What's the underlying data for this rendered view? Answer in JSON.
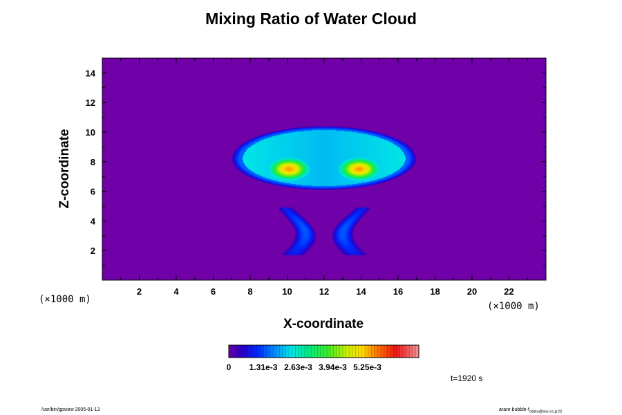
{
  "chart_data": {
    "type": "heatmap",
    "title": "Mixing Ratio of Water Cloud",
    "xlabel": "X-coordinate",
    "ylabel": "Z-coordinate",
    "x_unit": "(×1000 m)",
    "y_unit": "(×1000 m)",
    "xlim": [
      0,
      24
    ],
    "ylim": [
      0,
      15
    ],
    "x_ticks": [
      2,
      4,
      6,
      8,
      10,
      12,
      14,
      16,
      18,
      20,
      22
    ],
    "y_ticks": [
      2,
      4,
      6,
      8,
      10,
      12,
      14
    ],
    "colorbar": {
      "min": 0,
      "max": 0.0072,
      "tick_labels": [
        "0",
        "1.31e-3",
        "2.63e-3",
        "3.94e-3",
        "5.25e-3"
      ],
      "tick_values": [
        0,
        0.00131,
        0.00263,
        0.00394,
        0.00525
      ]
    },
    "background_value": 0,
    "features": [
      {
        "label": "cloud cap",
        "center": [
          12,
          8.2
        ],
        "extent_x": [
          7,
          17
        ],
        "extent_z": [
          6.2,
          10.6
        ],
        "peak": 0.0023
      },
      {
        "label": "left vortex core",
        "center": [
          10.1,
          7.5
        ],
        "peak": 0.0054
      },
      {
        "label": "right vortex core",
        "center": [
          13.9,
          7.5
        ],
        "peak": 0.0054
      },
      {
        "label": "left lower plume",
        "center": [
          10.3,
          3.6
        ],
        "extent_z": [
          1.7,
          4.9
        ],
        "peak": 0.0014
      },
      {
        "label": "right lower plume",
        "center": [
          13.7,
          3.6
        ],
        "extent_z": [
          1.7,
          4.9
        ],
        "peak": 0.0014
      }
    ],
    "time_label": "t=1920 s"
  },
  "footer": {
    "left": "/usr/bin/gpview 2005-01-13",
    "right": "arare-bubble-f",
    "right_sub": "odaka@kiwi.rcc.jp:02"
  },
  "colors": {
    "background": "#7000a8",
    "axis": "#000000"
  }
}
